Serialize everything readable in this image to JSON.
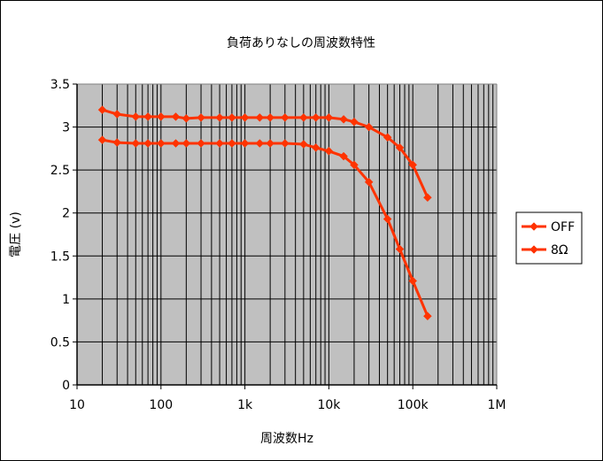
{
  "chart_data": {
    "type": "line",
    "title": "負荷ありなしの周波数特性",
    "xlabel": "周波数Hz",
    "ylabel": "電圧 (v)",
    "x_scale": "log",
    "xlim": [
      10,
      1000000
    ],
    "ylim": [
      0,
      3.5
    ],
    "x_ticks": [
      {
        "value": 10,
        "label": "10"
      },
      {
        "value": 100,
        "label": "100"
      },
      {
        "value": 1000,
        "label": "1k"
      },
      {
        "value": 10000,
        "label": "10k"
      },
      {
        "value": 100000,
        "label": "100k"
      },
      {
        "value": 1000000,
        "label": "1M"
      }
    ],
    "y_ticks": [
      {
        "value": 0,
        "label": "0"
      },
      {
        "value": 0.5,
        "label": "0.5"
      },
      {
        "value": 1,
        "label": "1"
      },
      {
        "value": 1.5,
        "label": "1.5"
      },
      {
        "value": 2,
        "label": "2"
      },
      {
        "value": 2.5,
        "label": "2.5"
      },
      {
        "value": 3,
        "label": "3"
      },
      {
        "value": 3.5,
        "label": "3.5"
      }
    ],
    "grid": true,
    "legend_position": "right",
    "series": [
      {
        "name": "OFF",
        "color": "#ff3300",
        "points": [
          [
            20,
            3.2
          ],
          [
            30,
            3.15
          ],
          [
            50,
            3.12
          ],
          [
            70,
            3.12
          ],
          [
            100,
            3.12
          ],
          [
            150,
            3.12
          ],
          [
            200,
            3.1
          ],
          [
            300,
            3.11
          ],
          [
            500,
            3.11
          ],
          [
            700,
            3.11
          ],
          [
            1000,
            3.11
          ],
          [
            1500,
            3.11
          ],
          [
            2000,
            3.11
          ],
          [
            3000,
            3.11
          ],
          [
            5000,
            3.11
          ],
          [
            7000,
            3.11
          ],
          [
            10000,
            3.11
          ],
          [
            15000,
            3.09
          ],
          [
            20000,
            3.06
          ],
          [
            30000,
            3.0
          ],
          [
            50000,
            2.88
          ],
          [
            70000,
            2.76
          ],
          [
            100000,
            2.56
          ],
          [
            150000,
            2.18
          ]
        ]
      },
      {
        "name": "8Ω",
        "color": "#ff3300",
        "points": [
          [
            20,
            2.85
          ],
          [
            30,
            2.82
          ],
          [
            50,
            2.81
          ],
          [
            70,
            2.81
          ],
          [
            100,
            2.81
          ],
          [
            150,
            2.81
          ],
          [
            200,
            2.81
          ],
          [
            300,
            2.81
          ],
          [
            500,
            2.81
          ],
          [
            700,
            2.81
          ],
          [
            1000,
            2.81
          ],
          [
            1500,
            2.81
          ],
          [
            2000,
            2.81
          ],
          [
            3000,
            2.81
          ],
          [
            5000,
            2.8
          ],
          [
            7000,
            2.76
          ],
          [
            10000,
            2.72
          ],
          [
            15000,
            2.66
          ],
          [
            20000,
            2.56
          ],
          [
            30000,
            2.36
          ],
          [
            50000,
            1.93
          ],
          [
            70000,
            1.58
          ],
          [
            100000,
            1.21
          ],
          [
            150000,
            0.8
          ]
        ]
      }
    ]
  }
}
